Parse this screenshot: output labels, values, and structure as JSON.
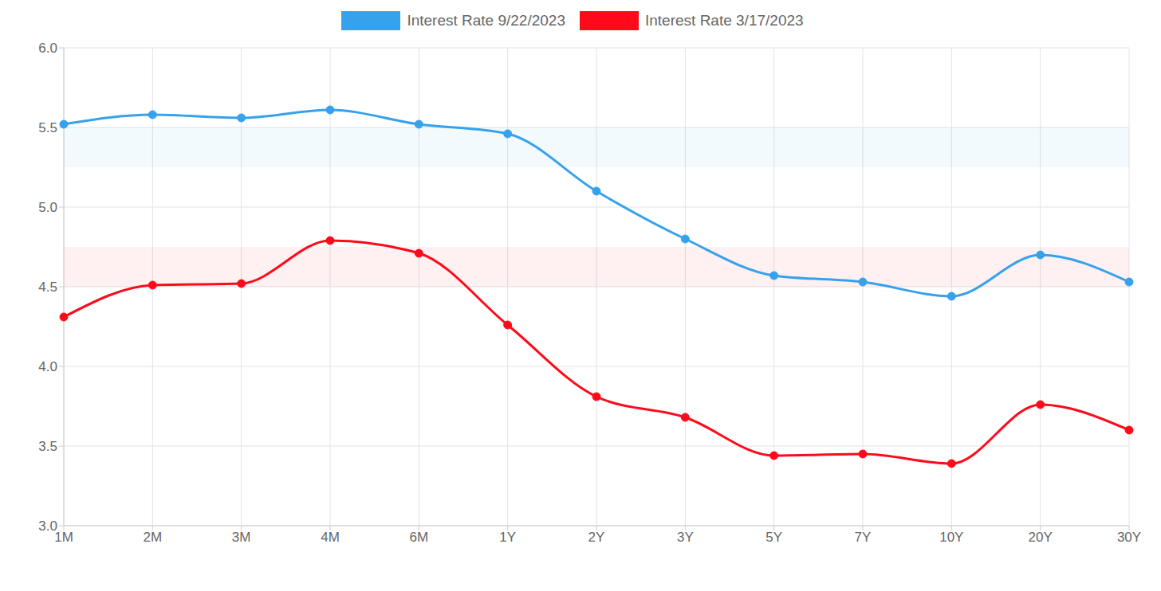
{
  "chart_data": {
    "type": "line",
    "categories": [
      "1M",
      "2M",
      "3M",
      "4M",
      "6M",
      "1Y",
      "2Y",
      "3Y",
      "5Y",
      "7Y",
      "10Y",
      "20Y",
      "30Y"
    ],
    "series": [
      {
        "name": "Interest Rate 9/22/2023",
        "color": "#36a2eb",
        "marker": "circle",
        "line_style": "solid",
        "values": [
          5.52,
          5.58,
          5.56,
          5.61,
          5.52,
          5.46,
          5.1,
          4.8,
          4.57,
          4.53,
          4.44,
          4.7,
          4.53
        ],
        "target_range": [
          5.25,
          5.5
        ]
      },
      {
        "name": "Interest Rate 3/17/2023",
        "color": "#ff0a1a",
        "marker": "circle",
        "line_style": "solid",
        "values": [
          4.31,
          4.51,
          4.52,
          4.79,
          4.71,
          4.26,
          3.81,
          3.68,
          3.44,
          3.45,
          3.39,
          3.76,
          3.6
        ],
        "target_range": [
          4.5,
          4.75
        ]
      }
    ],
    "ylim": [
      3,
      6
    ],
    "yticks": [
      {
        "value": 3,
        "label": "3.0"
      },
      {
        "value": 3.5,
        "label": "3.5"
      },
      {
        "value": 4,
        "label": "4.0"
      },
      {
        "value": 4.5,
        "label": "4.5"
      },
      {
        "value": 5,
        "label": "5.0"
      },
      {
        "value": 5.5,
        "label": "5.5"
      },
      {
        "value": 6,
        "label": "6.0"
      }
    ],
    "grid": true,
    "legend": "top"
  }
}
